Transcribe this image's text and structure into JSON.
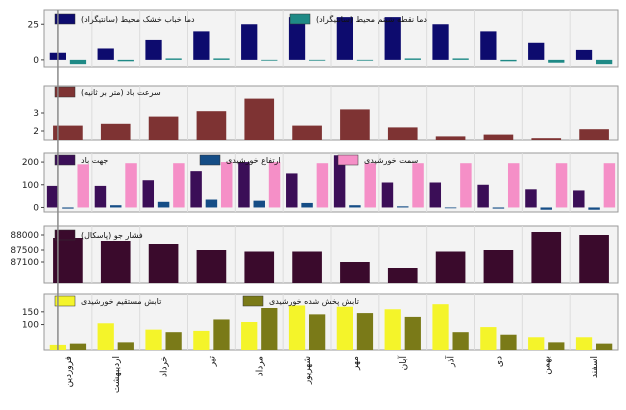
{
  "chart_data": {
    "type": "bar",
    "categories": [
      "فروردین",
      "اردیبهشت",
      "خرداد",
      "تیر",
      "مرداد",
      "شهریور",
      "مهر",
      "آبان",
      "آذر",
      "دی",
      "بهمن",
      "اسفند"
    ],
    "panels": [
      {
        "ylim": [
          -5,
          35
        ],
        "yticks": [
          {
            "v": 0,
            "label": "0"
          },
          {
            "v": 25,
            "label": "25"
          }
        ],
        "series": [
          {
            "name": "دما خباب خشک محیط (سانتیگراد)",
            "color": "#0d0b6e",
            "values": [
              5,
              8,
              14,
              20,
              25,
              30,
              30,
              30,
              25,
              20,
              12,
              7
            ]
          },
          {
            "name": "دما نقطه شبنم محیط (سانتیگراد)",
            "color": "#1f8a86",
            "values": [
              -3,
              -1,
              1,
              1,
              0,
              0,
              0,
              1,
              1,
              -1,
              -2,
              -3
            ]
          }
        ]
      },
      {
        "ylim": [
          1.5,
          4.5
        ],
        "yticks": [
          {
            "v": 2,
            "label": "2"
          },
          {
            "v": 3,
            "label": "3"
          }
        ],
        "series": [
          {
            "name": "سرعت باد (متر بر ثانیه)",
            "color": "#7e3333",
            "values": [
              2.3,
              2.4,
              2.8,
              3.1,
              3.8,
              2.3,
              3.2,
              2.2,
              1.7,
              1.8,
              1.6,
              2.1
            ]
          }
        ]
      },
      {
        "ylim": [
          -20,
          240
        ],
        "yticks": [
          {
            "v": 0,
            "label": "0"
          },
          {
            "v": 100,
            "label": "100"
          },
          {
            "v": 200,
            "label": "200"
          }
        ],
        "series": [
          {
            "name": "جهت باد",
            "color": "#3b0e57",
            "values": [
              95,
              95,
              120,
              160,
              200,
              150,
              230,
              110,
              110,
              100,
              80,
              75
            ]
          },
          {
            "name": "ارتفاع خورشیدی",
            "color": "#154d86",
            "values": [
              -5,
              10,
              25,
              35,
              30,
              20,
              10,
              5,
              0,
              -5,
              -10,
              -10
            ]
          },
          {
            "name": "سمت خورشیدی",
            "color": "#f58fc7",
            "values": [
              190,
              195,
              195,
              200,
              200,
              195,
              195,
              195,
              195,
              195,
              195,
              195
            ]
          }
        ]
      },
      {
        "ylim": [
          86400,
          88300
        ],
        "yticks": [
          {
            "v": 87100,
            "label": "87100"
          },
          {
            "v": 87500,
            "label": "87500"
          },
          {
            "v": 88000,
            "label": "88000"
          }
        ],
        "series": [
          {
            "name": "فشار جو (پاسکال)",
            "color": "#3a0a2c",
            "values": [
              87900,
              87800,
              87700,
              87500,
              87450,
              87450,
              87100,
              86900,
              87450,
              87500,
              88100,
              88000
            ]
          }
        ]
      },
      {
        "ylim": [
          0,
          220
        ],
        "yticks": [
          {
            "v": 100,
            "label": "100"
          },
          {
            "v": 150,
            "label": "150"
          }
        ],
        "series": [
          {
            "name": "تابش مستقیم خورشیدی",
            "color": "#f4f42a",
            "values": [
              20,
              105,
              80,
              75,
              110,
              175,
              170,
              160,
              180,
              90,
              50,
              50
            ]
          },
          {
            "name": "تابش پخش شده خورشیدی",
            "color": "#7a7a18",
            "values": [
              25,
              30,
              70,
              120,
              165,
              140,
              145,
              130,
              70,
              60,
              30,
              25
            ]
          }
        ]
      }
    ]
  }
}
